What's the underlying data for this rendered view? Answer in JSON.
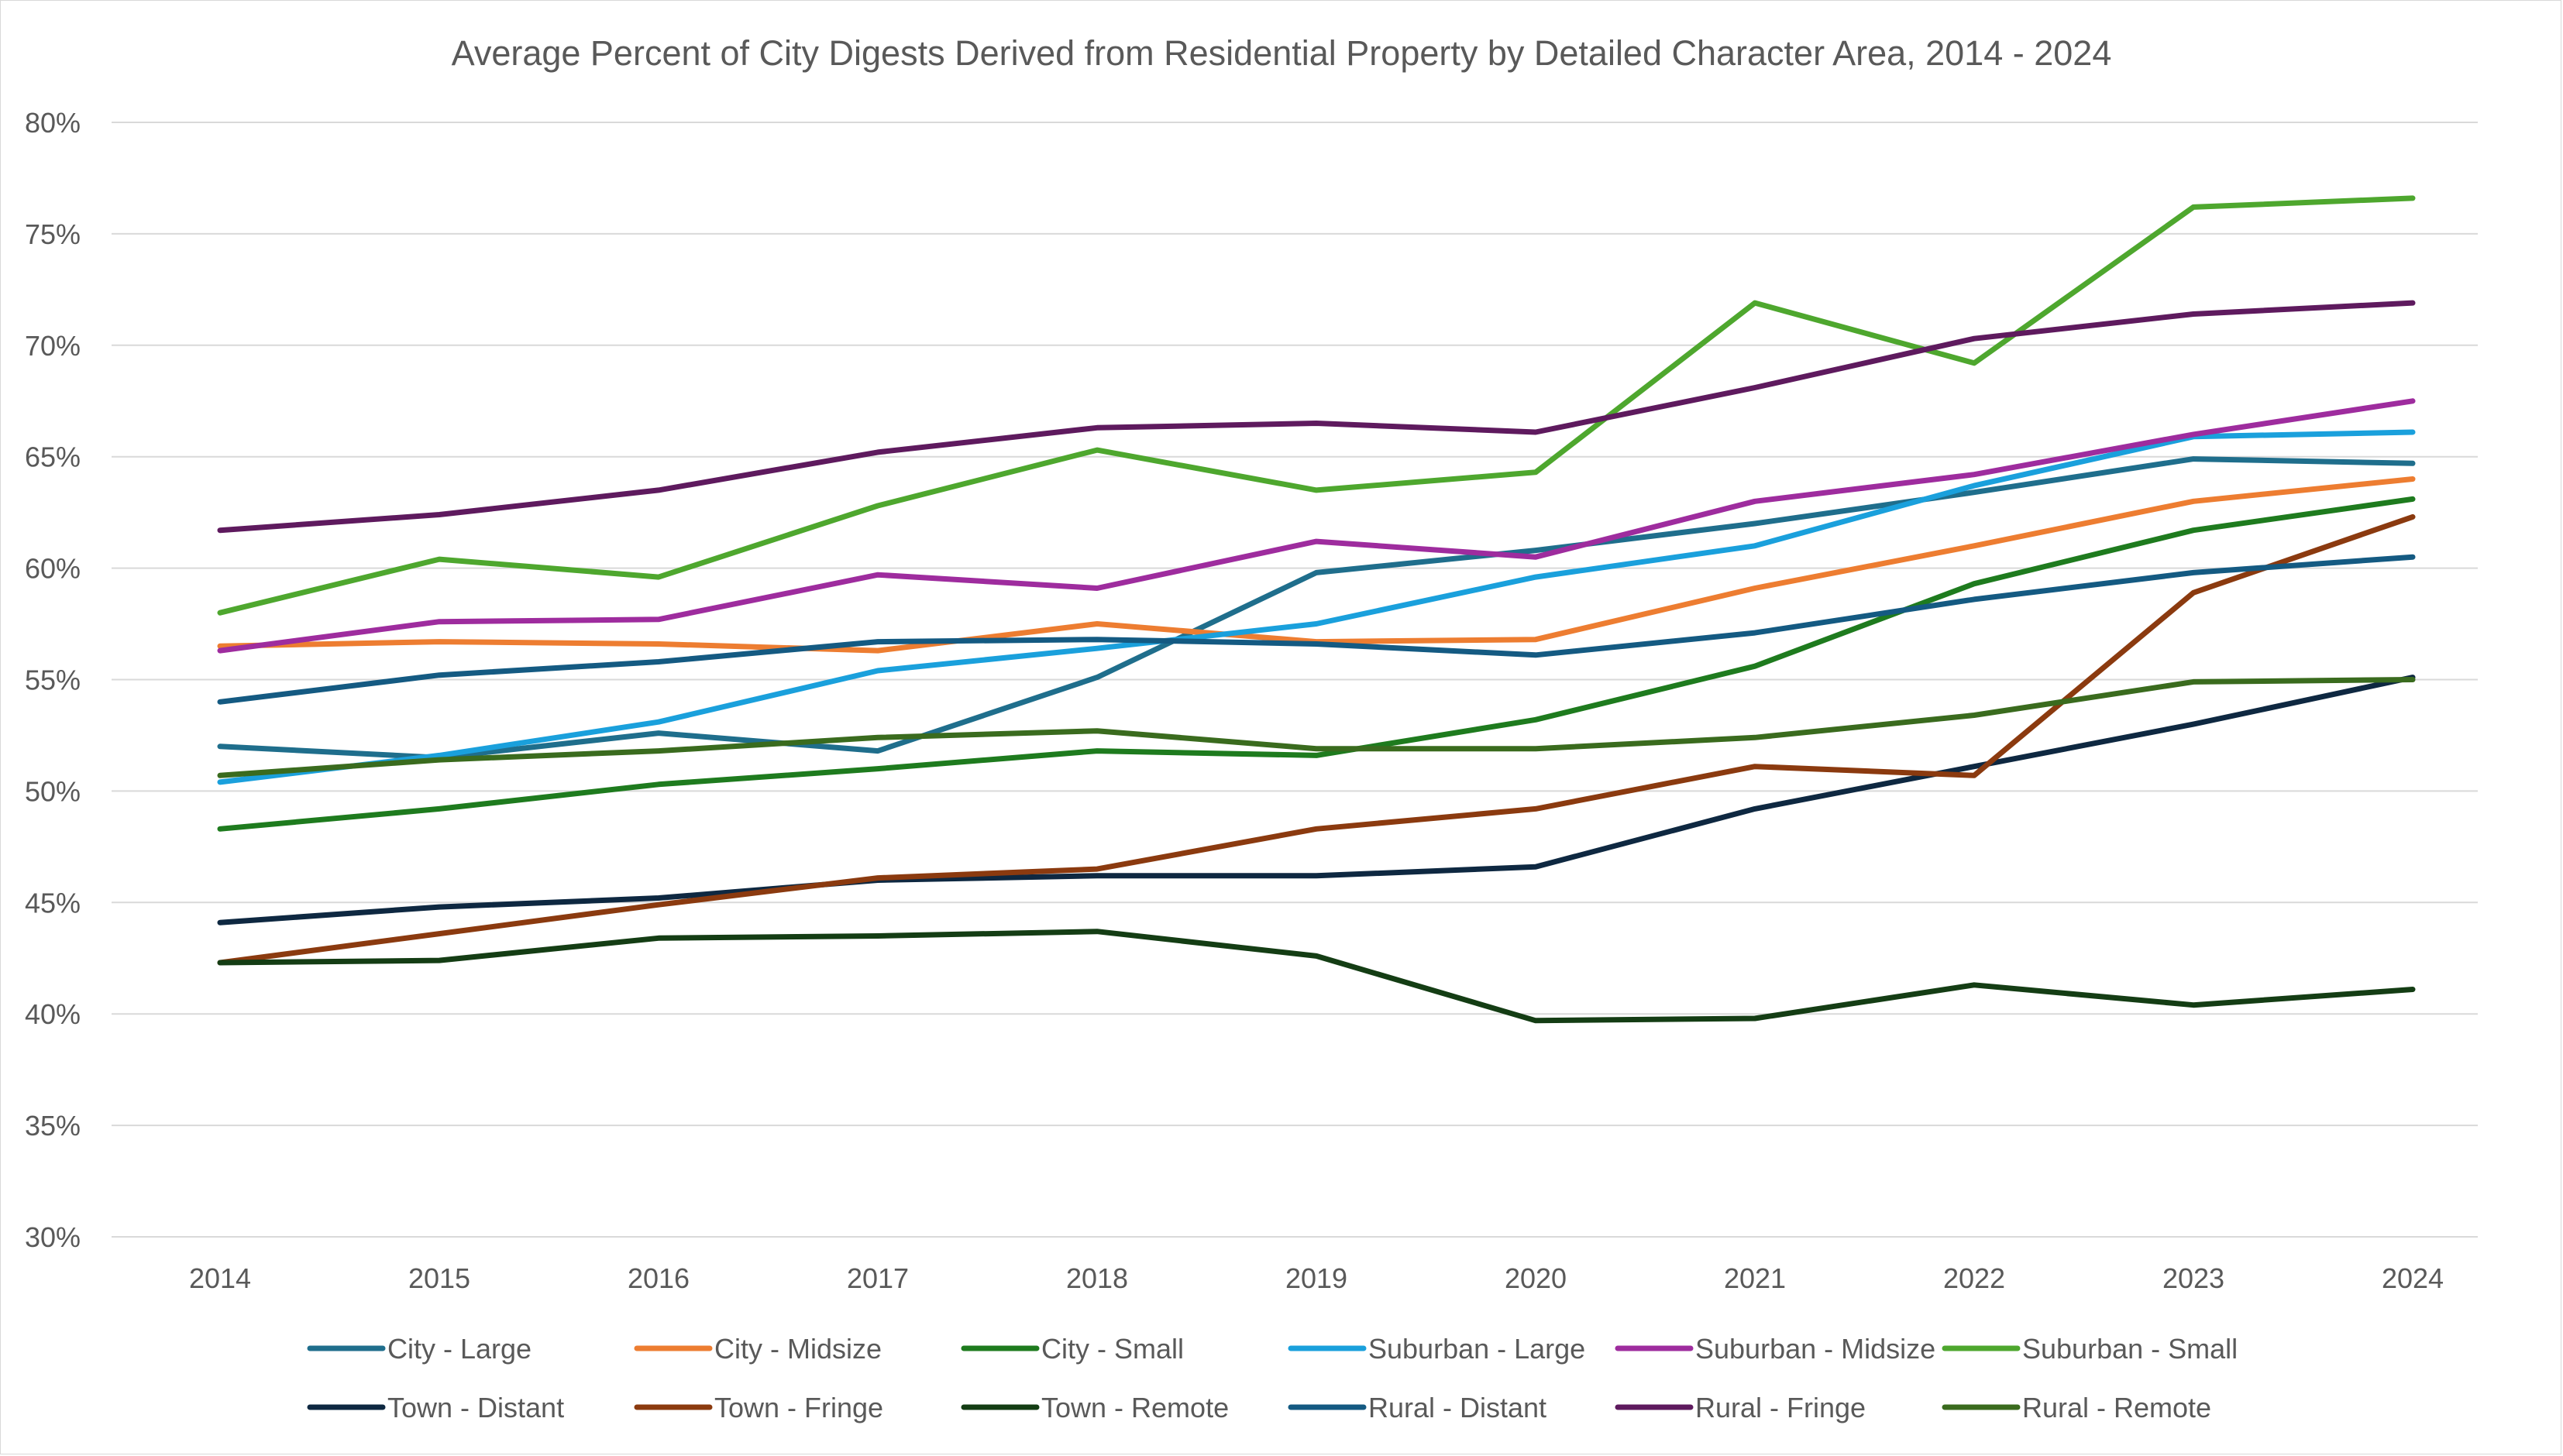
{
  "chart_data": {
    "type": "line",
    "title": "Average Percent of City Digests Derived from Residential Property by Detailed Character Area, 2014 - 2024",
    "xlabel": "",
    "ylabel": "",
    "x": [
      "2014",
      "2015",
      "2016",
      "2017",
      "2018",
      "2019",
      "2020",
      "2021",
      "2022",
      "2023",
      "2024"
    ],
    "ylim": [
      30,
      80
    ],
    "yticks": [
      "30%",
      "35%",
      "40%",
      "45%",
      "50%",
      "55%",
      "60%",
      "65%",
      "70%",
      "75%",
      "80%"
    ],
    "grid": true,
    "legend_position": "bottom",
    "series": [
      {
        "name": "City - Large",
        "color": "#1F6E8C",
        "values": [
          52.0,
          51.5,
          52.6,
          51.8,
          55.1,
          59.8,
          60.8,
          62.0,
          63.4,
          64.9,
          64.7
        ]
      },
      {
        "name": "City - Midsize",
        "color": "#ED7D31",
        "values": [
          56.5,
          56.7,
          56.6,
          56.3,
          57.5,
          56.7,
          56.8,
          59.1,
          61.0,
          63.0,
          64.0
        ]
      },
      {
        "name": "City - Small",
        "color": "#1E7B1E",
        "values": [
          48.3,
          49.2,
          50.3,
          51.0,
          51.8,
          51.6,
          53.2,
          55.6,
          59.3,
          61.7,
          63.1
        ]
      },
      {
        "name": "Suburban - Large",
        "color": "#1AA0DC",
        "values": [
          50.4,
          51.6,
          53.1,
          55.4,
          56.4,
          57.5,
          59.6,
          61.0,
          63.7,
          65.9,
          66.1
        ]
      },
      {
        "name": "Suburban - Midsize",
        "color": "#9E2C9E",
        "values": [
          56.3,
          57.6,
          57.7,
          59.7,
          59.1,
          61.2,
          60.5,
          63.0,
          64.2,
          66.0,
          67.5
        ]
      },
      {
        "name": "Suburban - Small",
        "color": "#4EA72E",
        "values": [
          58.0,
          60.4,
          59.6,
          62.8,
          65.3,
          63.5,
          64.3,
          71.9,
          69.2,
          76.2,
          76.6
        ]
      },
      {
        "name": "Town - Distant",
        "color": "#0E2841",
        "values": [
          44.1,
          44.8,
          45.2,
          46.0,
          46.2,
          46.2,
          46.6,
          49.2,
          51.1,
          53.0,
          55.1
        ]
      },
      {
        "name": "Town - Fringe",
        "color": "#8B3A0F",
        "values": [
          42.3,
          43.6,
          44.9,
          46.1,
          46.5,
          48.3,
          49.2,
          51.1,
          50.7,
          58.9,
          62.3
        ]
      },
      {
        "name": "Town - Remote",
        "color": "#143D14",
        "values": [
          42.3,
          42.4,
          43.4,
          43.5,
          43.7,
          42.6,
          39.7,
          39.8,
          41.3,
          40.4,
          41.1
        ]
      },
      {
        "name": "Rural - Distant",
        "color": "#145A82",
        "values": [
          54.0,
          55.2,
          55.8,
          56.7,
          56.8,
          56.6,
          56.1,
          57.1,
          58.6,
          59.8,
          60.5
        ]
      },
      {
        "name": "Rural - Fringe",
        "color": "#5E1A5E",
        "values": [
          61.7,
          62.4,
          63.5,
          65.2,
          66.3,
          66.5,
          66.1,
          68.1,
          70.3,
          71.4,
          71.9
        ]
      },
      {
        "name": "Rural - Remote",
        "color": "#3A6B1E",
        "values": [
          50.7,
          51.4,
          51.8,
          52.4,
          52.7,
          51.9,
          51.9,
          52.4,
          53.4,
          54.9,
          55.0
        ]
      }
    ]
  }
}
